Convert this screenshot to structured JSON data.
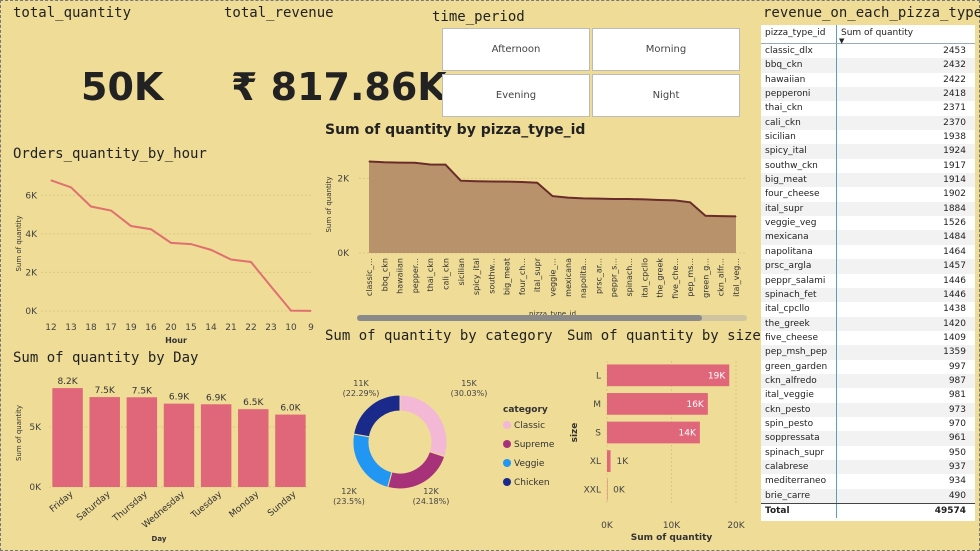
{
  "kpis": {
    "quantity_title": "total_quantity",
    "quantity_value": "50K",
    "revenue_title": "total_revenue",
    "revenue_value": "₹ 817.86K"
  },
  "slicer": {
    "title": "time_period",
    "options": [
      "Afternoon",
      "Morning",
      "Evening",
      "Night"
    ]
  },
  "table": {
    "title": "revenue_on_each_pizza_type",
    "col1": "pizza_type_id",
    "col2": "Sum of quantity",
    "rows": [
      [
        "classic_dlx",
        "2453"
      ],
      [
        "bbq_ckn",
        "2432"
      ],
      [
        "hawaiian",
        "2422"
      ],
      [
        "pepperoni",
        "2418"
      ],
      [
        "thai_ckn",
        "2371"
      ],
      [
        "cali_ckn",
        "2370"
      ],
      [
        "sicilian",
        "1938"
      ],
      [
        "spicy_ital",
        "1924"
      ],
      [
        "southw_ckn",
        "1917"
      ],
      [
        "big_meat",
        "1914"
      ],
      [
        "four_cheese",
        "1902"
      ],
      [
        "ital_supr",
        "1884"
      ],
      [
        "veggie_veg",
        "1526"
      ],
      [
        "mexicana",
        "1484"
      ],
      [
        "napolitana",
        "1464"
      ],
      [
        "prsc_argla",
        "1457"
      ],
      [
        "peppr_salami",
        "1446"
      ],
      [
        "spinach_fet",
        "1446"
      ],
      [
        "ital_cpcllo",
        "1438"
      ],
      [
        "the_greek",
        "1420"
      ],
      [
        "five_cheese",
        "1409"
      ],
      [
        "pep_msh_pep",
        "1359"
      ],
      [
        "green_garden",
        "997"
      ],
      [
        "ckn_alfredo",
        "987"
      ],
      [
        "ital_veggie",
        "981"
      ],
      [
        "ckn_pesto",
        "973"
      ],
      [
        "spin_pesto",
        "970"
      ],
      [
        "soppressata",
        "961"
      ],
      [
        "spinach_supr",
        "950"
      ],
      [
        "calabrese",
        "937"
      ],
      [
        "mediterraneo",
        "934"
      ],
      [
        "brie_carre",
        "490"
      ]
    ],
    "total_label": "Total",
    "total_value": "49574"
  },
  "chart_data": [
    {
      "type": "line",
      "title": "Orders_quantity_by_hour",
      "xlabel": "Hour",
      "ylabel": "Sum of quantity",
      "categories": [
        "12",
        "13",
        "18",
        "17",
        "19",
        "16",
        "20",
        "15",
        "14",
        "21",
        "22",
        "23",
        "10",
        "9"
      ],
      "values": [
        6776,
        6413,
        5417,
        5211,
        4406,
        4239,
        3534,
        3470,
        3170,
        2672,
        2542,
        1273,
        18,
        4
      ],
      "yticks": [
        "0K",
        "2K",
        "4K",
        "6K"
      ],
      "ylim": [
        0,
        7000
      ],
      "color": "#e07070"
    },
    {
      "type": "area",
      "title": "Sum of quantity by pizza_type_id",
      "xlabel": "pizza_type_id",
      "ylabel": "Sum of quantity",
      "categories": [
        "classic_...",
        "bbq_ckn",
        "hawaiian",
        "pepper...",
        "thai_ckn",
        "cali_ckn",
        "sicilian",
        "spicy_ital",
        "southw...",
        "big_meat",
        "four_ch...",
        "ital_supr",
        "veggie_...",
        "mexicana",
        "napolita...",
        "prsc_ar...",
        "peppr_s...",
        "spinach...",
        "ital_cpcllo",
        "the_greek",
        "five_che...",
        "pep_ms...",
        "green_g...",
        "ckn_alfr...",
        "ital_veg..."
      ],
      "values": [
        2453,
        2432,
        2422,
        2418,
        2371,
        2370,
        1938,
        1924,
        1917,
        1914,
        1902,
        1884,
        1526,
        1484,
        1464,
        1457,
        1446,
        1446,
        1438,
        1420,
        1409,
        1359,
        997,
        987,
        981
      ],
      "yticks": [
        "0K",
        "2K"
      ],
      "ylim": [
        0,
        2600
      ],
      "color": "#b8926a"
    },
    {
      "type": "bar",
      "title": "Sum of quantity by Day",
      "xlabel": "Day",
      "ylabel": "Sum of quantity",
      "categories": [
        "Friday",
        "Saturday",
        "Thursday",
        "Wednesday",
        "Tuesday",
        "Monday",
        "Sunday"
      ],
      "values": [
        8242,
        7493,
        7478,
        6946,
        6895,
        6485,
        6035
      ],
      "labels": [
        "8.2K",
        "7.5K",
        "7.5K",
        "6.9K",
        "6.9K",
        "6.5K",
        "6.0K"
      ],
      "yticks": [
        "0K",
        "5K"
      ],
      "ylim": [
        0,
        9000
      ],
      "color": "#e0677a"
    },
    {
      "type": "pie",
      "title": "Sum of quantity by category",
      "legend_title": "category",
      "series": [
        {
          "name": "Classic",
          "value": 14888,
          "label": "15K",
          "pct": "(30.03%)",
          "color": "#f2b8d6"
        },
        {
          "name": "Supreme",
          "value": 11987,
          "label": "12K",
          "pct": "(24.18%)",
          "color": "#a8327a"
        },
        {
          "name": "Veggie",
          "value": 11649,
          "label": "12K",
          "pct": "(23.5%)",
          "color": "#2196f3"
        },
        {
          "name": "Chicken",
          "value": 11050,
          "label": "11K",
          "pct": "(22.29%)",
          "color": "#1a2a8a"
        }
      ]
    },
    {
      "type": "bar",
      "orientation": "horizontal",
      "title": "Sum of quantity by size",
      "xlabel": "Sum of quantity",
      "ylabel": "size",
      "categories": [
        "L",
        "M",
        "S",
        "XL",
        "XXL"
      ],
      "values": [
        18956,
        15635,
        14403,
        552,
        28
      ],
      "labels": [
        "19K",
        "16K",
        "14K",
        "1K",
        "0K"
      ],
      "xticks": [
        "0K",
        "10K",
        "20K"
      ],
      "xlim": [
        0,
        20000
      ],
      "color": "#e0677a"
    }
  ]
}
